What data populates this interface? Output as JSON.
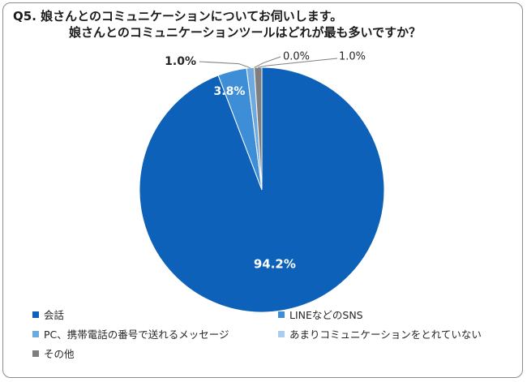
{
  "title": {
    "line1": "Q5.  娘さんとのコミュニケーションについてお伺いします。",
    "line2": "娘さんとのコミュニケーションツールはどれが最も多いですか？"
  },
  "chart_data": {
    "type": "pie",
    "title": "Q5.  娘さんとのコミュニケーションについてお伺いします。 娘さんとのコミュニケーションツールはどれが最も多いですか？",
    "categories": [
      "会話",
      "LINEなどのSNS",
      "PC、携帯電話の番号で送れるメッセージ",
      "あまりコミュニケーションをとれていない",
      "その他"
    ],
    "values": [
      94.2,
      3.8,
      1.0,
      0.0,
      1.0
    ],
    "labels": [
      "94.2%",
      "3.8%",
      "1.0%",
      "0.0%",
      "1.0%"
    ],
    "colors": [
      "#0e61b8",
      "#3d8ed6",
      "#6ea9e0",
      "#a9cdef",
      "#7f7f7f"
    ],
    "legend_position": "bottom",
    "start_angle_deg": 0,
    "direction": "clockwise"
  }
}
